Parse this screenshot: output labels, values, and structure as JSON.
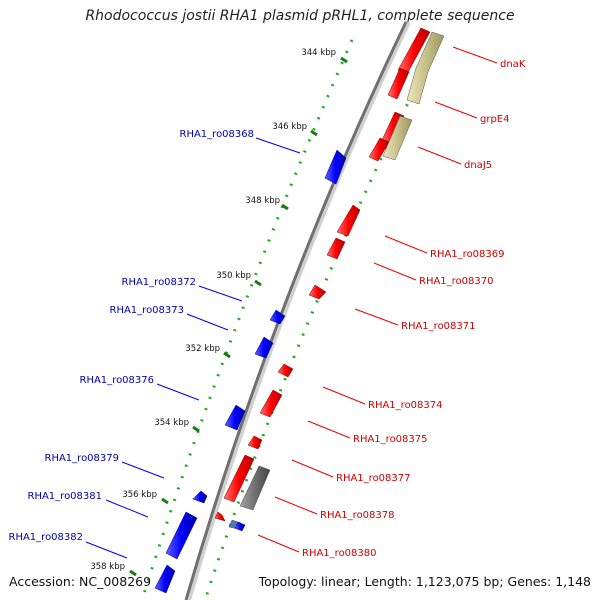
{
  "title": "Rhodococcus jostii RHA1 plasmid pRHL1, complete sequence",
  "footer": {
    "accession": "Accession: NC_008269",
    "topology": "Topology: linear; Length: 1,123,075 bp; Genes: 1,148"
  },
  "ticks": [
    "344 kbp",
    "346 kbp",
    "348 kbp",
    "350 kbp",
    "352 kbp",
    "354 kbp",
    "356 kbp",
    "358 kbp"
  ],
  "genes_left": [
    "RHA1_ro08368",
    "RHA1_ro08372",
    "RHA1_ro08373",
    "RHA1_ro08376",
    "RHA1_ro08379",
    "RHA1_ro08381",
    "RHA1_ro08382"
  ],
  "genes_right": [
    "dnaK",
    "grpE4",
    "dnaJ5",
    "RHA1_ro08369",
    "RHA1_ro08370",
    "RHA1_ro08371",
    "RHA1_ro08374",
    "RHA1_ro08375",
    "RHA1_ro08377",
    "RHA1_ro08378",
    "RHA1_ro08380"
  ],
  "colors": {
    "forward_gene": "#ff0000",
    "reverse_gene": "#0000ff",
    "left_label": "#0000aa",
    "right_label": "#cc0000",
    "backbone": "#808080",
    "dots": "#22aa22",
    "khaki_gene": "#c8c08a",
    "gray_gene": "#707070"
  }
}
